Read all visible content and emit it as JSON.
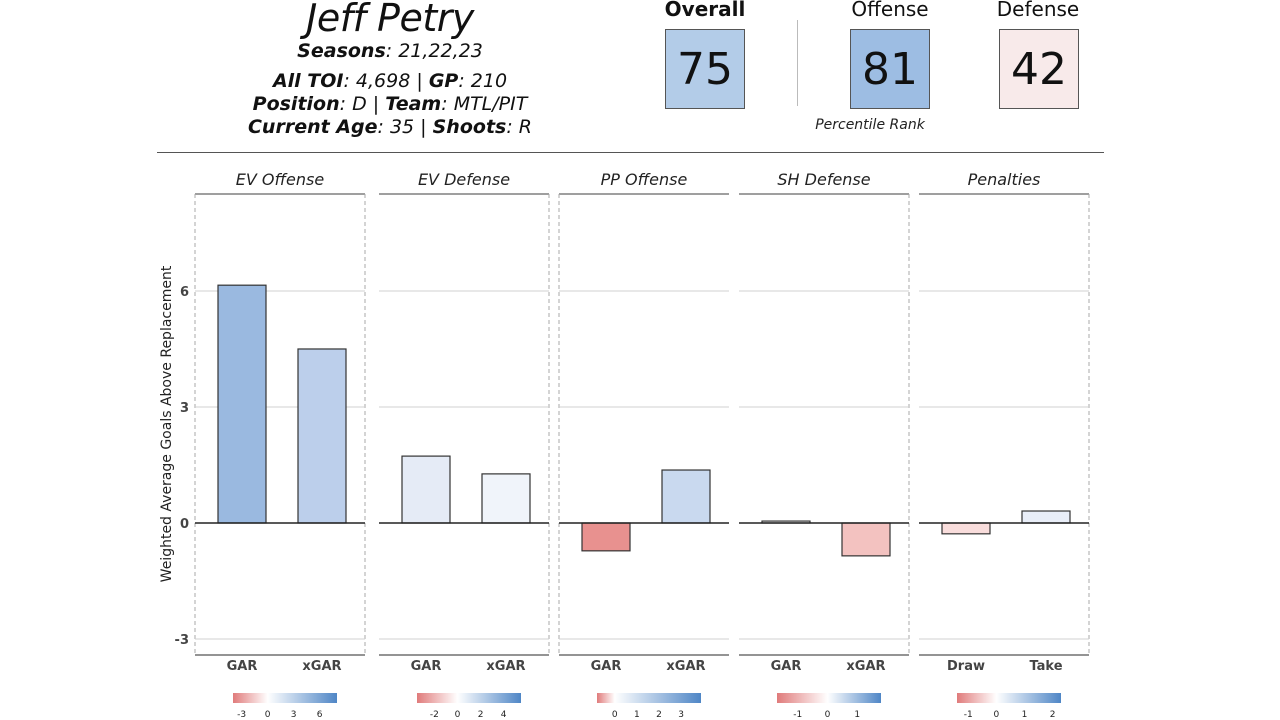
{
  "player": {
    "name": "Jeff Petry",
    "seasons_label": "Seasons",
    "seasons_value": "21,22,23",
    "toi_label": "All TOI",
    "toi_value": "4,698",
    "gp_label": "GP",
    "gp_value": "210",
    "position_label": "Position",
    "position_value": "D",
    "team_label": "Team",
    "team_value": "MTL/PIT",
    "age_label": "Current Age",
    "age_value": "35",
    "shoots_label": "Shoots",
    "shoots_value": "R",
    "separator": " | ",
    "colon": ": "
  },
  "scores": {
    "overall": {
      "label": "Overall",
      "value": "75",
      "color": "#b3cce8"
    },
    "offense": {
      "label": "Offense",
      "value": "81",
      "color": "#9dbde3"
    },
    "defense": {
      "label": "Defense",
      "value": "42",
      "color": "#f8eaea"
    },
    "caption": "Percentile Rank"
  },
  "chart_data": {
    "type": "bar",
    "title": "",
    "ylabel": "Weighted Average Goals Above Replacement",
    "xlabel": "",
    "ylim": [
      -3.4,
      8.0
    ],
    "yticks": [
      -3,
      0,
      3,
      6
    ],
    "grid": true,
    "panels": [
      {
        "title": "EV Offense",
        "categories": [
          "GAR",
          "xGAR"
        ],
        "values": [
          6.15,
          4.5
        ],
        "colors": [
          "#9ab9e0",
          "#bccfeb"
        ],
        "legend": {
          "min": -4,
          "max": 8,
          "ticks": [
            -3,
            0,
            3,
            6
          ]
        }
      },
      {
        "title": "EV Defense",
        "categories": [
          "GAR",
          "xGAR"
        ],
        "values": [
          1.73,
          1.27
        ],
        "colors": [
          "#e5ebf6",
          "#f0f4fa"
        ],
        "legend": {
          "min": -3.5,
          "max": 5.5,
          "ticks": [
            -2,
            0,
            2,
            4
          ]
        }
      },
      {
        "title": "PP Offense",
        "categories": [
          "GAR",
          "xGAR"
        ],
        "values": [
          -0.72,
          1.37
        ],
        "colors": [
          "#e8918f",
          "#c9d9ef"
        ],
        "legend": {
          "min": -0.8,
          "max": 3.9,
          "ticks": [
            0,
            1,
            2,
            3
          ]
        }
      },
      {
        "title": "SH Defense",
        "categories": [
          "GAR",
          "xGAR"
        ],
        "values": [
          0.05,
          -0.85
        ],
        "colors": [
          "#fbfbfd",
          "#f3c2c0"
        ],
        "legend": {
          "min": -1.7,
          "max": 1.8,
          "ticks": [
            -1,
            0,
            1
          ]
        }
      },
      {
        "title": "Penalties",
        "categories": [
          "Draw",
          "Take"
        ],
        "values": [
          -0.28,
          0.31
        ],
        "colors": [
          "#f9dddc",
          "#e9eef8"
        ],
        "legend": {
          "min": -1.4,
          "max": 2.3,
          "ticks": [
            -1,
            0,
            1,
            2
          ]
        }
      }
    ],
    "colorscale": {
      "low": "#e07b7b",
      "mid": "#ffffff",
      "high": "#4f86c6"
    }
  }
}
